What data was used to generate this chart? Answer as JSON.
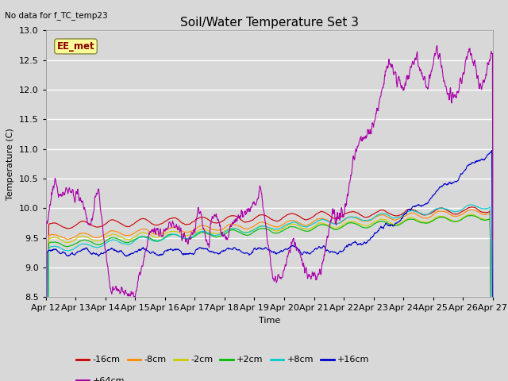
{
  "title": "Soil/Water Temperature Set 3",
  "xlabel": "Time",
  "ylabel": "Temperature (C)",
  "no_data_label": "No data for f_TC_temp23",
  "annotation_label": "EE_met",
  "ylim": [
    8.5,
    13.0
  ],
  "yticks": [
    8.5,
    9.0,
    9.5,
    10.0,
    10.5,
    11.0,
    11.5,
    12.0,
    12.5,
    13.0
  ],
  "x_tick_labels": [
    "Apr 12",
    "Apr 13",
    "Apr 14",
    "Apr 15",
    "Apr 16",
    "Apr 17",
    "Apr 18",
    "Apr 19",
    "Apr 20",
    "Apr 21",
    "Apr 22",
    "Apr 23",
    "Apr 24",
    "Apr 25",
    "Apr 26",
    "Apr 27"
  ],
  "series": {
    "-16cm": {
      "color": "#cc0000",
      "linewidth": 0.8
    },
    "-8cm": {
      "color": "#ff8800",
      "linewidth": 0.8
    },
    "-2cm": {
      "color": "#cccc00",
      "linewidth": 0.8
    },
    "+2cm": {
      "color": "#00bb00",
      "linewidth": 0.8
    },
    "+8cm": {
      "color": "#00cccc",
      "linewidth": 0.8
    },
    "+16cm": {
      "color": "#0000cc",
      "linewidth": 0.8
    },
    "+64cm": {
      "color": "#aa00aa",
      "linewidth": 0.8
    }
  },
  "legend_order": [
    "-16cm",
    "-8cm",
    "-2cm",
    "+2cm",
    "+8cm",
    "+16cm",
    "+64cm"
  ],
  "bg_color": "#d8d8d8",
  "plot_bg_color": "#d8d8d8",
  "annotation_bg": "#ffff99",
  "annotation_fg": "#880000",
  "title_fontsize": 11,
  "axis_fontsize": 8,
  "legend_fontsize": 8
}
